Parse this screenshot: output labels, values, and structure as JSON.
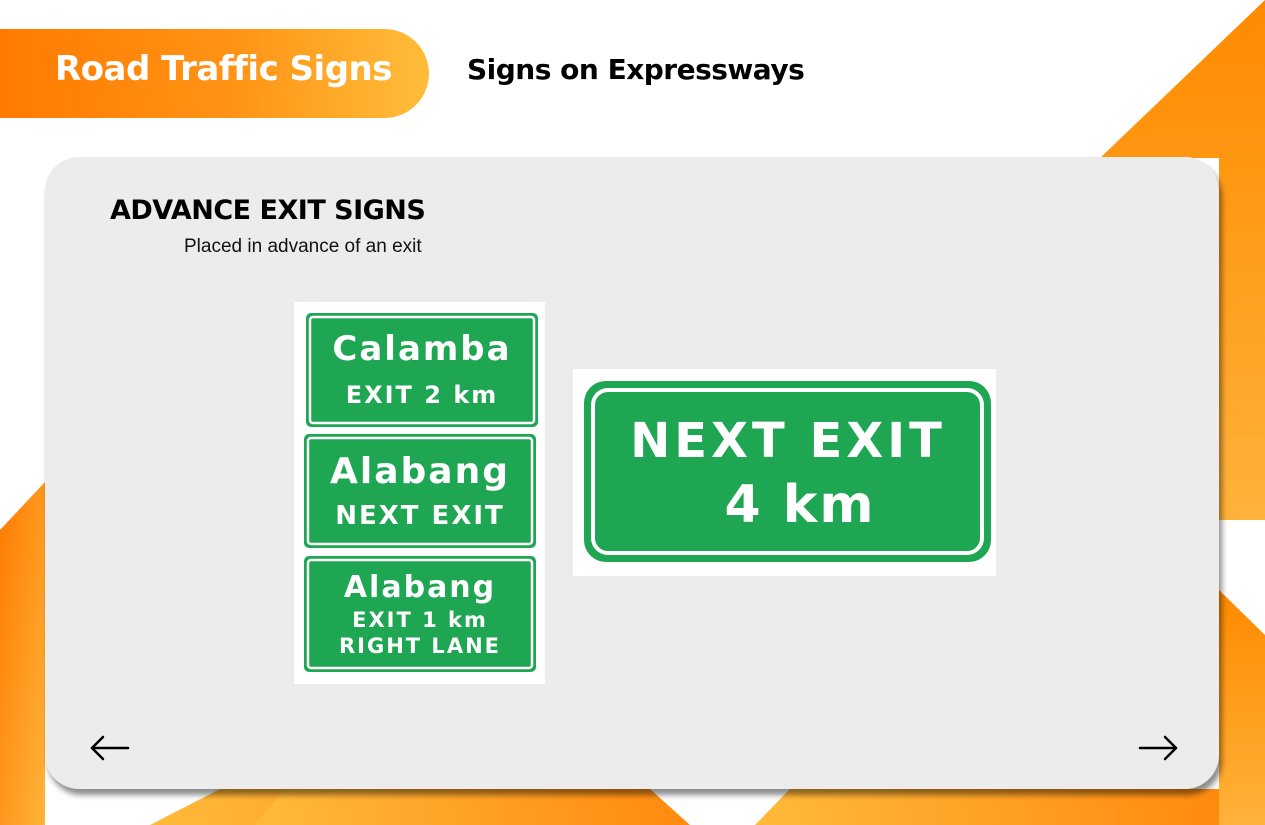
{
  "header": {
    "title": "Road Traffic Signs",
    "subtitle": "Signs on Expressways"
  },
  "card": {
    "heading": "ADVANCE EXIT SIGNS",
    "description": "Placed in advance of an exit"
  },
  "signs": {
    "calamba": {
      "line1": "Calamba",
      "line2": "EXIT 2 km"
    },
    "alabang_next": {
      "line1": "Alabang",
      "line2": "NEXT EXIT"
    },
    "alabang_right": {
      "line1": "Alabang",
      "line2": "EXIT 1 km",
      "line3": "RIGHT LANE"
    },
    "next_exit": {
      "line1": "NEXT EXIT",
      "line2": "4 km"
    }
  },
  "navigation": {
    "prev_icon": "arrow-left-icon",
    "next_icon": "arrow-right-icon"
  },
  "colors": {
    "accent_orange": "#ff7a00",
    "accent_yellow": "#ffbd3a",
    "sign_green": "#1ea653",
    "card_background": "#ececec"
  }
}
